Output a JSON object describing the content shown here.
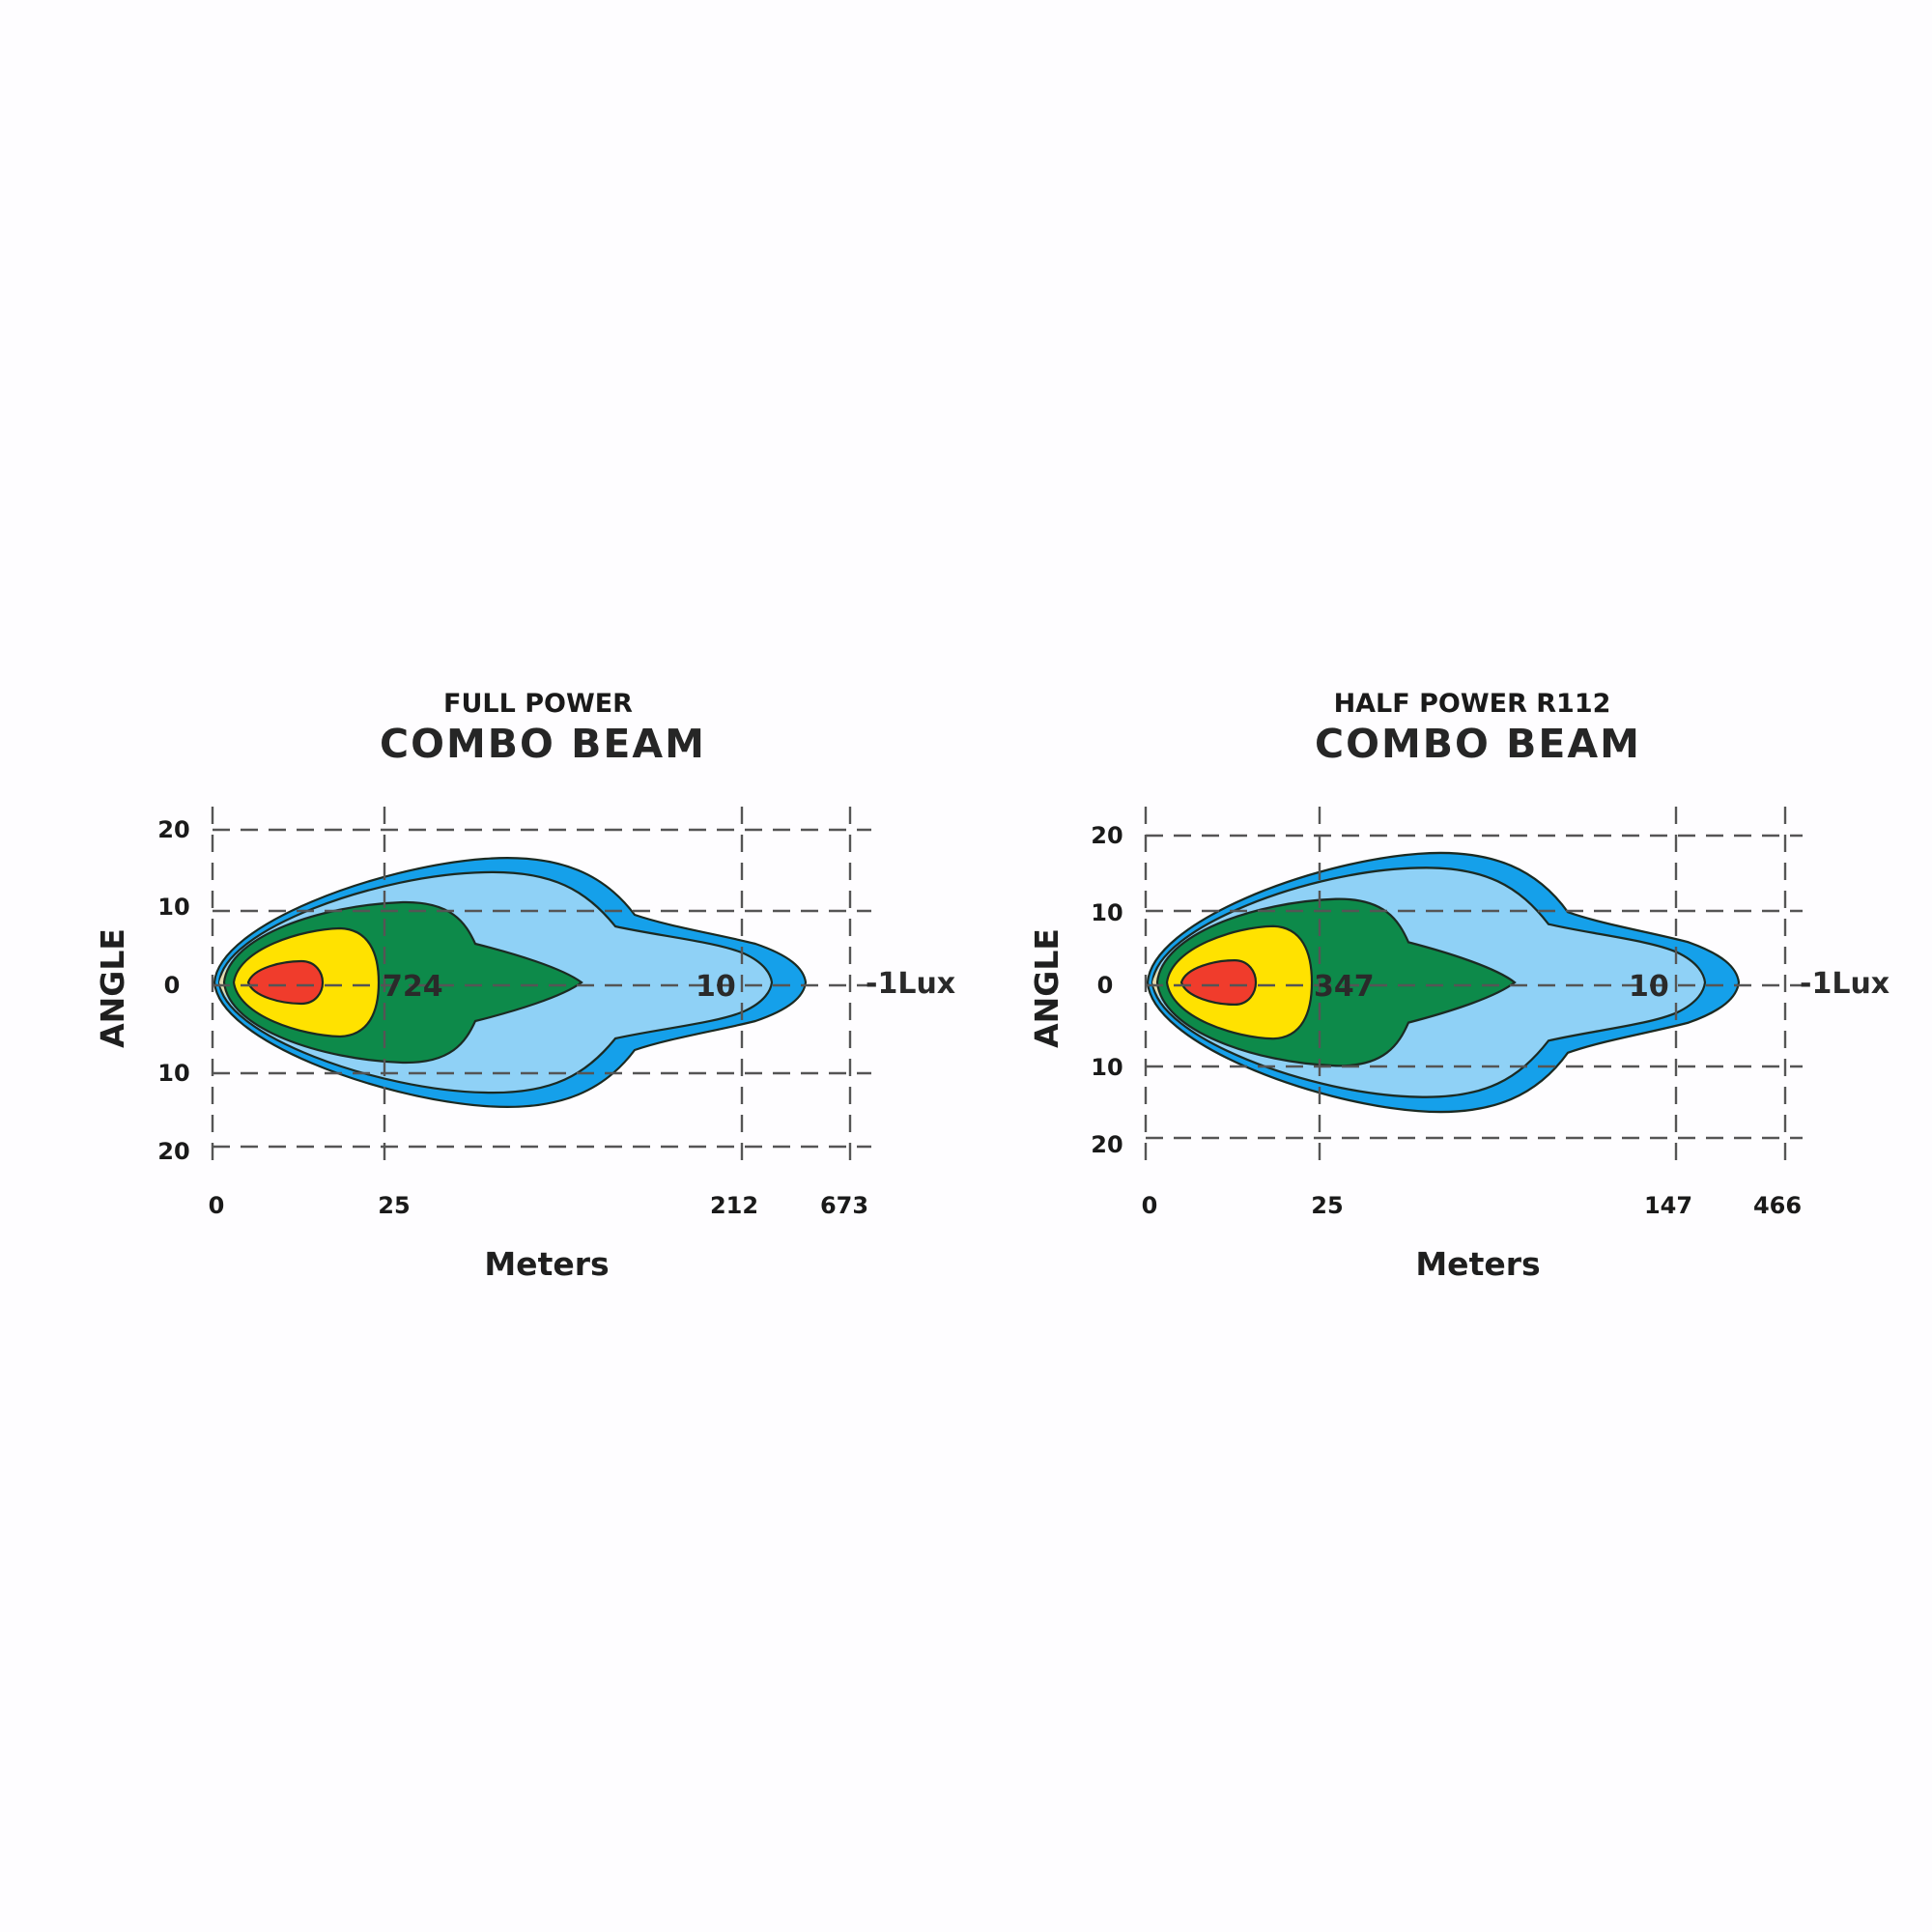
{
  "colors": {
    "background": "#fefdff",
    "zone_1lux": "#15a0ea",
    "zone_10lux": "#8fd1f6",
    "zone_green": "#0d8a4a",
    "zone_yellow": "#ffe200",
    "zone_red": "#f03c2c",
    "halo": "#e6dcb0"
  },
  "chart_data": [
    {
      "type": "isolux-diagram",
      "subtitle": "FULL POWER",
      "title": "COMBO  BEAM",
      "ylabel": "ANGLE",
      "xlabel": "Meters",
      "x_ticks": [
        "0",
        "25",
        "212",
        "673"
      ],
      "y_ticks": [
        "20",
        "10",
        "0",
        "10",
        "20"
      ],
      "annotations": {
        "peak_lux": "724",
        "mid_lux": "10",
        "outer_lux": "-1Lux"
      },
      "grid": true
    },
    {
      "type": "isolux-diagram",
      "subtitle": "HALF POWER R112",
      "title": "COMBO  BEAM",
      "ylabel": "ANGLE",
      "xlabel": "Meters",
      "x_ticks": [
        "0",
        "25",
        "147",
        "466"
      ],
      "y_ticks": [
        "20",
        "10",
        "0",
        "10",
        "20"
      ],
      "annotations": {
        "peak_lux": "347",
        "mid_lux": "10",
        "outer_lux": "-1Lux"
      },
      "grid": true
    }
  ]
}
